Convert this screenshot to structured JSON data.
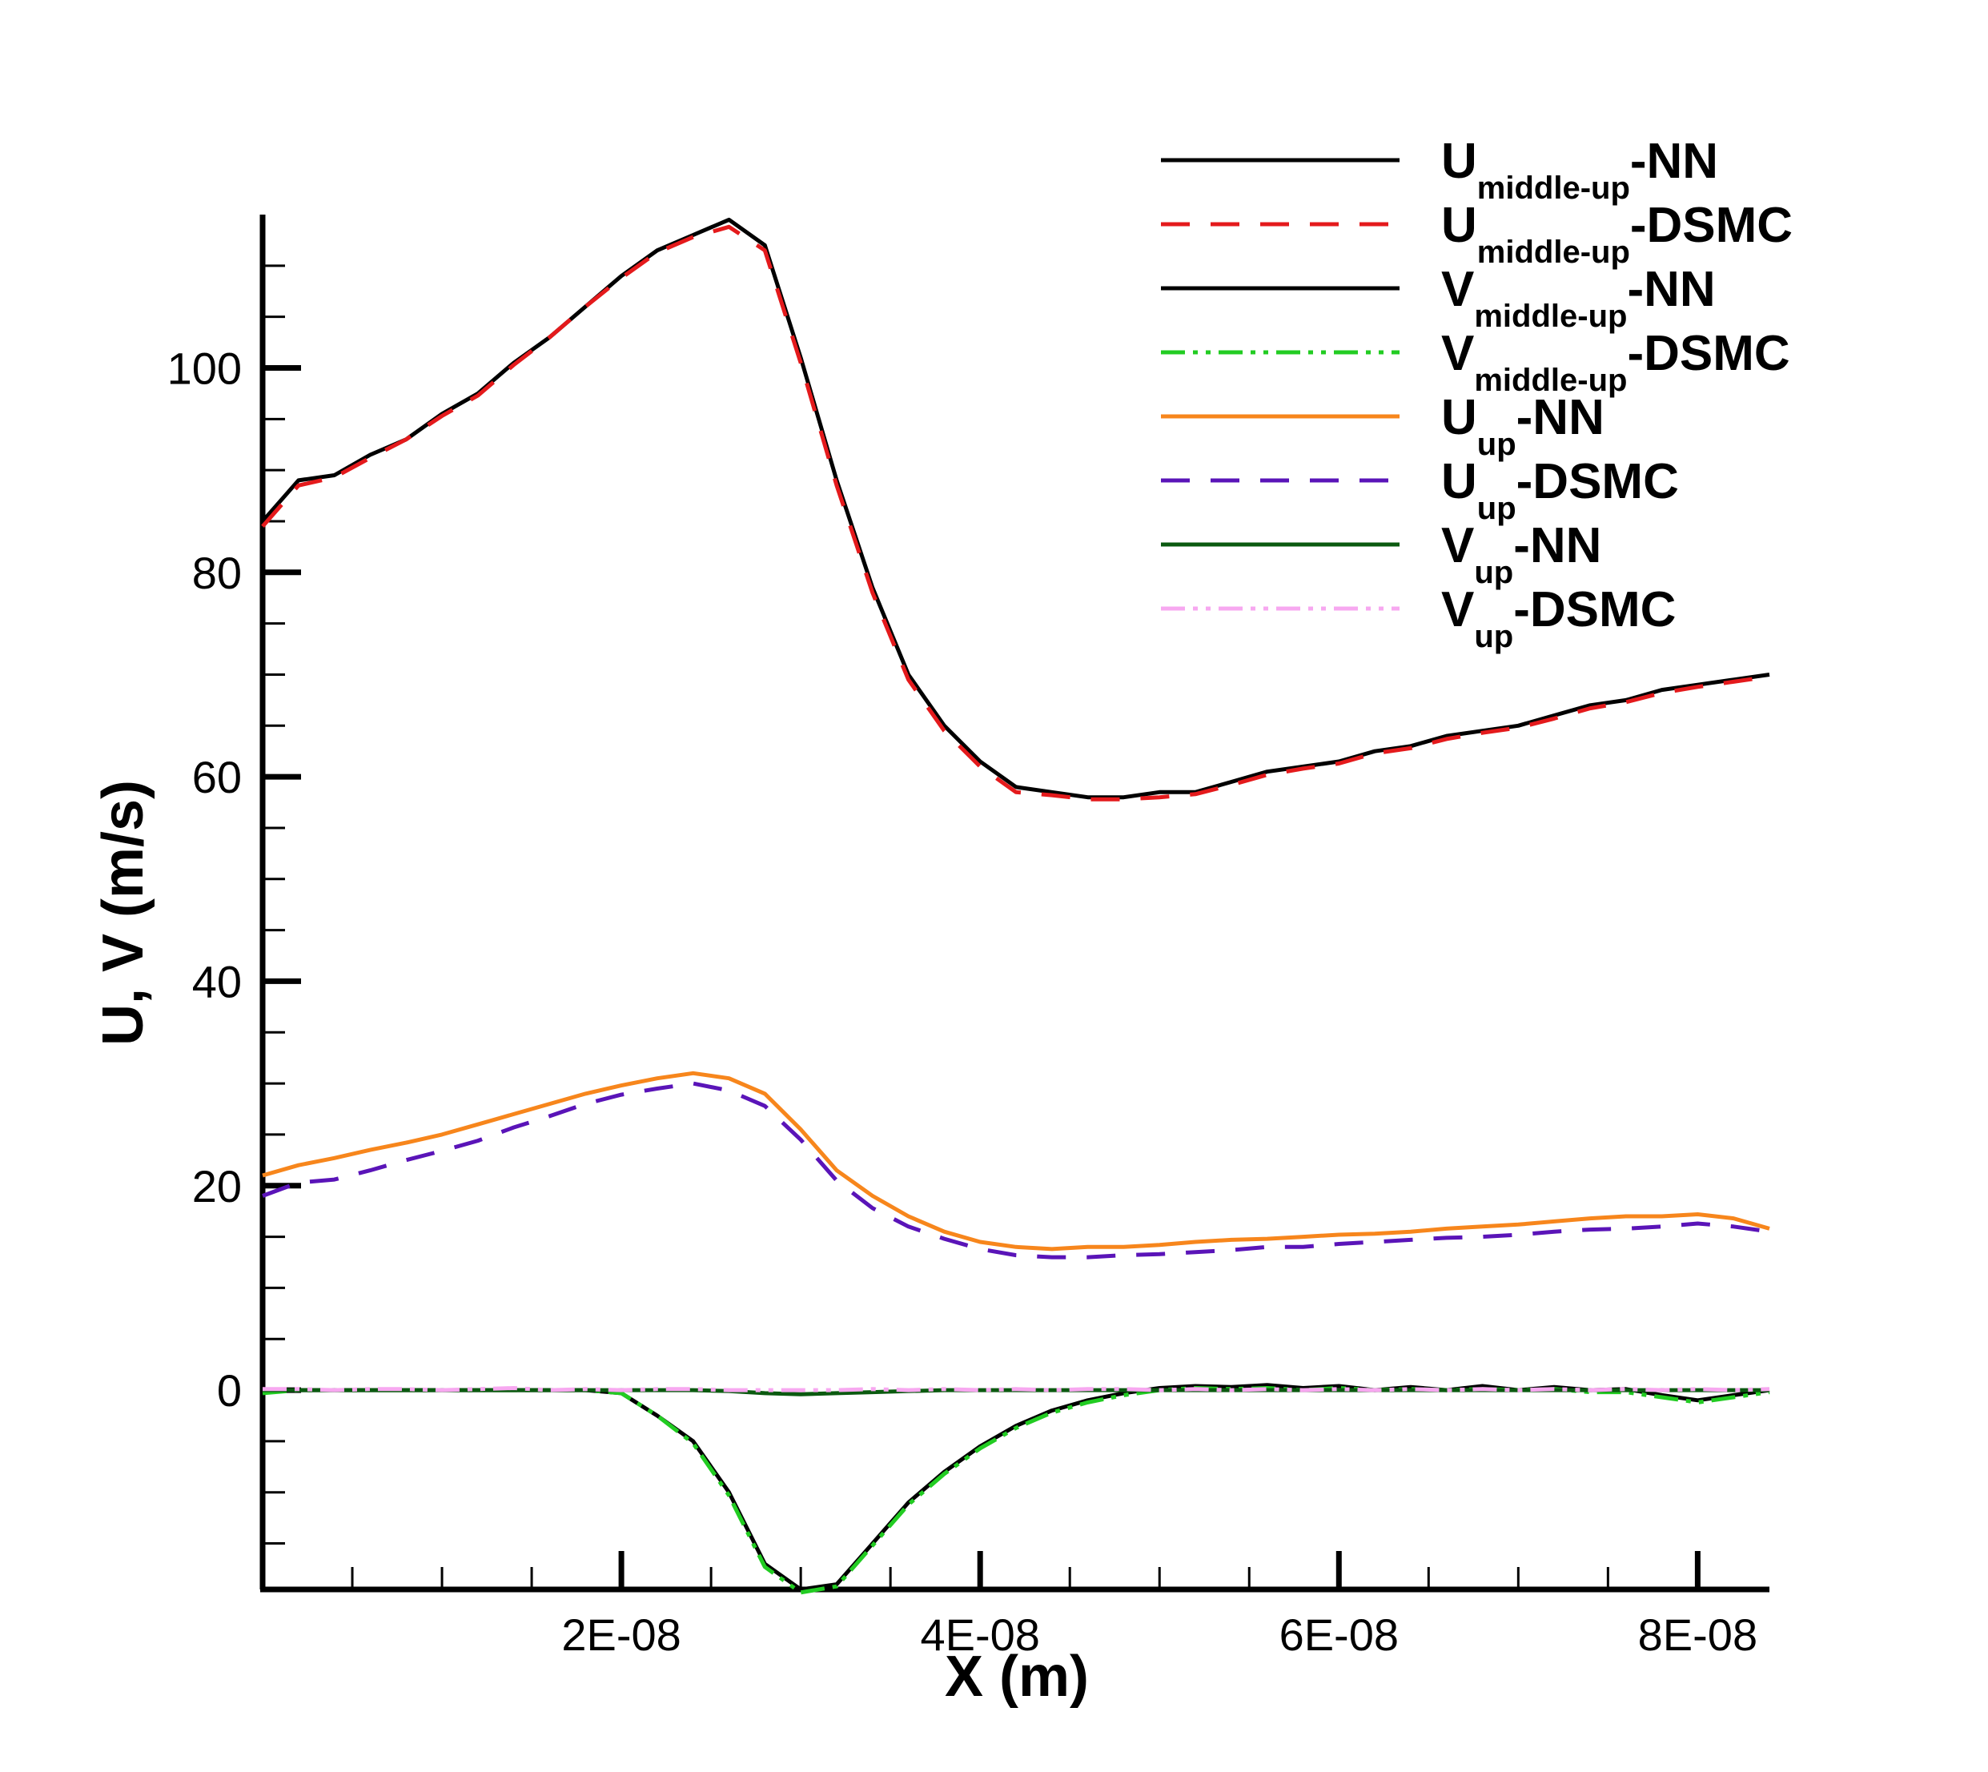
{
  "chart_data": {
    "type": "line",
    "title": "",
    "xlabel": "X (m)",
    "ylabel": "U, V (m/s)",
    "xlim": [
      0,
      8.4e-08
    ],
    "ylim": [
      -19.5,
      115
    ],
    "grid": false,
    "legend_position": "top-right",
    "x_ticks": [
      {
        "value": 2e-08,
        "label": "2E-08"
      },
      {
        "value": 4e-08,
        "label": "4E-08"
      },
      {
        "value": 6e-08,
        "label": "6E-08"
      },
      {
        "value": 8e-08,
        "label": "8E-08"
      }
    ],
    "y_ticks": [
      {
        "value": 0,
        "label": "0"
      },
      {
        "value": 20,
        "label": "20"
      },
      {
        "value": 40,
        "label": "40"
      },
      {
        "value": 60,
        "label": "60"
      },
      {
        "value": 80,
        "label": "80"
      },
      {
        "value": 100,
        "label": "100"
      }
    ],
    "x": [
      0,
      2e-09,
      4e-09,
      6e-09,
      8e-09,
      1e-08,
      1.2e-08,
      1.4e-08,
      1.6e-08,
      1.8e-08,
      2e-08,
      2.2e-08,
      2.4e-08,
      2.6e-08,
      2.8e-08,
      3e-08,
      3.2e-08,
      3.4e-08,
      3.6e-08,
      3.8e-08,
      4e-08,
      4.2e-08,
      4.4e-08,
      4.6e-08,
      4.8e-08,
      5e-08,
      5.2e-08,
      5.4e-08,
      5.6e-08,
      5.8e-08,
      6e-08,
      6.2e-08,
      6.4e-08,
      6.6e-08,
      6.8e-08,
      7e-08,
      7.2e-08,
      7.4e-08,
      7.6e-08,
      7.8e-08,
      8e-08,
      8.2e-08,
      8.4e-08
    ],
    "series": [
      {
        "name": "U_middle-up-NN",
        "main": "U",
        "sub": "middle-up",
        "suffix": "-NN",
        "color": "#000000",
        "dash": "none",
        "values": [
          85,
          89,
          89.5,
          91.5,
          93,
          95.5,
          97.5,
          100.5,
          103,
          106,
          109,
          111.5,
          113,
          114.5,
          112,
          101,
          89,
          78.5,
          70,
          65,
          61.5,
          59,
          58.5,
          58,
          58,
          58.5,
          58.5,
          59.5,
          60.5,
          61,
          61.5,
          62.5,
          63,
          64,
          64.5,
          65,
          66,
          67,
          67.5,
          68.5,
          69,
          69.5,
          70
        ]
      },
      {
        "name": "U_middle-up-DSMC",
        "main": "U",
        "sub": "middle-up",
        "suffix": "-DSMC",
        "color": "#e41a1c",
        "dash": "36,26",
        "values": [
          84.5,
          88.5,
          89.3,
          91.2,
          93,
          95.3,
          97.3,
          100.3,
          103,
          106,
          108.8,
          111.3,
          112.8,
          113.8,
          111.5,
          100.5,
          88.5,
          78,
          69.5,
          64.5,
          61,
          58.5,
          58.2,
          57.8,
          57.8,
          58,
          58.3,
          59.2,
          60.2,
          60.8,
          61.3,
          62.3,
          62.8,
          63.7,
          64.3,
          64.8,
          65.7,
          66.7,
          67.3,
          68.2,
          68.8,
          69.3,
          69.8
        ]
      },
      {
        "name": "V_middle-up-NN",
        "main": "V",
        "sub": "middle-up",
        "suffix": "-NN",
        "color": "#000000",
        "dash": "none",
        "values": [
          0,
          0,
          0,
          0,
          0,
          0,
          0,
          0,
          0,
          0,
          -0.3,
          -2.5,
          -5,
          -10,
          -17,
          -19.5,
          -19,
          -15,
          -11,
          -8,
          -5.5,
          -3.5,
          -2,
          -1,
          -0.3,
          0.2,
          0.4,
          0.3,
          0.5,
          0.2,
          0.4,
          0,
          0.3,
          0,
          0.4,
          0,
          0.3,
          0,
          0.1,
          -0.5,
          -1,
          -0.5,
          0
        ]
      },
      {
        "name": "V_middle-up-DSMC",
        "main": "V",
        "sub": "middle-up",
        "suffix": "-DSMC",
        "color": "#22cc22",
        "dash": "30,10,6,10,6,10",
        "values": [
          -0.3,
          0,
          0,
          0,
          0,
          0,
          0,
          0,
          0,
          0,
          -0.3,
          -2.5,
          -5.2,
          -10.3,
          -17.3,
          -19.8,
          -19.2,
          -15.2,
          -11.2,
          -8.2,
          -5.7,
          -3.7,
          -2.2,
          -1.2,
          -0.5,
          0,
          0.2,
          0.1,
          0.2,
          0,
          0.2,
          0,
          0.1,
          0,
          0.1,
          0,
          0.1,
          -0.2,
          -0.2,
          -0.7,
          -1.2,
          -0.7,
          -0.2
        ]
      },
      {
        "name": "U_up-NN",
        "main": "U",
        "sub": "up",
        "suffix": "-NN",
        "color": "#f7861c",
        "dash": "none",
        "values": [
          21,
          22,
          22.7,
          23.5,
          24.2,
          25,
          26,
          27,
          28,
          29,
          29.8,
          30.5,
          31,
          30.5,
          29,
          25.5,
          21.5,
          19,
          17,
          15.5,
          14.5,
          14,
          13.8,
          14,
          14,
          14.2,
          14.5,
          14.7,
          14.8,
          15,
          15.2,
          15.3,
          15.5,
          15.8,
          16,
          16.2,
          16.5,
          16.8,
          17,
          17,
          17.2,
          16.8,
          15.8
        ]
      },
      {
        "name": "U_up-DSMC",
        "main": "U",
        "sub": "up",
        "suffix": "-DSMC",
        "color": "#5a14b8",
        "dash": "36,26",
        "values": [
          19,
          20.3,
          20.6,
          21.5,
          22.5,
          23.4,
          24.4,
          25.7,
          26.8,
          28,
          28.9,
          29.5,
          30,
          29.3,
          27.8,
          24.5,
          20.5,
          17.8,
          16,
          14.8,
          13.8,
          13.2,
          13,
          13,
          13.2,
          13.3,
          13.5,
          13.7,
          14,
          14,
          14.3,
          14.5,
          14.7,
          14.9,
          15,
          15.2,
          15.5,
          15.7,
          15.8,
          16,
          16.3,
          16,
          15.5
        ]
      },
      {
        "name": "V_up-NN",
        "main": "V",
        "sub": "up",
        "suffix": "-NN",
        "color": "#0b5a10",
        "dash": "none",
        "values": [
          0,
          0,
          0,
          0,
          0,
          0,
          0,
          0,
          0,
          0,
          0,
          0,
          0,
          -0.1,
          -0.3,
          -0.4,
          -0.3,
          -0.2,
          -0.1,
          0,
          0,
          0,
          0,
          0,
          0,
          0,
          0,
          0,
          0,
          0,
          0,
          0,
          0,
          0,
          0,
          0,
          0,
          0,
          0,
          0,
          0,
          0,
          0
        ]
      },
      {
        "name": "V_up-DSMC",
        "main": "V",
        "sub": "up",
        "suffix": "-DSMC",
        "color": "#f7a8f0",
        "dash": "30,10,6,10,6,10",
        "values": [
          0.1,
          0.1,
          0,
          0.1,
          0.1,
          0,
          0.1,
          0.2,
          0,
          0.1,
          0,
          0.1,
          0.1,
          0,
          0,
          0,
          0,
          0.1,
          0,
          0.1,
          0,
          0.1,
          0,
          0.1,
          0.1,
          0,
          0.1,
          0,
          0.1,
          0,
          0.1,
          0,
          0.1,
          0,
          0.1,
          0,
          0.1,
          0,
          0.1,
          0,
          0.1,
          0,
          0.1
        ]
      }
    ]
  }
}
